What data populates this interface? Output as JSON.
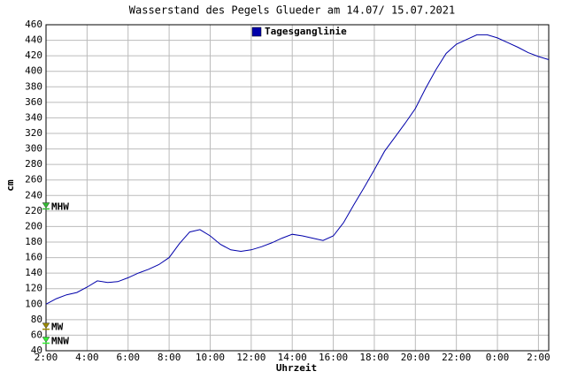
{
  "chart_data": {
    "type": "line",
    "title": "Wasserstand des Pegels Glueder am 14.07/ 15.07.2021",
    "x_label": "Uhrzeit",
    "y_label": "cm",
    "x": [
      2,
      2.5,
      3,
      3.5,
      4,
      4.5,
      5,
      5.5,
      6,
      6.5,
      7,
      7.5,
      8,
      8.5,
      9,
      9.5,
      10,
      10.5,
      11,
      11.5,
      12,
      12.5,
      13,
      13.5,
      14,
      14.5,
      15,
      15.5,
      16,
      16.5,
      17,
      17.5,
      18,
      18.5,
      19,
      19.5,
      20,
      20.5,
      21,
      21.5,
      22,
      22.5,
      23,
      23.5,
      24,
      24.5,
      25,
      25.5,
      26,
      26.5
    ],
    "series": [
      {
        "name": "Tagesganglinie",
        "color": "#0000aa",
        "values": [
          100,
          107,
          112,
          115,
          122,
          130,
          128,
          129,
          134,
          140,
          145,
          151,
          160,
          178,
          193,
          196,
          188,
          177,
          170,
          168,
          170,
          174,
          179,
          185,
          190,
          188,
          185,
          182,
          188,
          205,
          228,
          250,
          273,
          297,
          315,
          333,
          352,
          378,
          402,
          423,
          435,
          441,
          447,
          447,
          443,
          437,
          431,
          424,
          419,
          415
        ]
      }
    ],
    "xlim": [
      2,
      26.5
    ],
    "xticks": [
      {
        "value": 2,
        "label": "2:00"
      },
      {
        "value": 4,
        "label": "4:00"
      },
      {
        "value": 6,
        "label": "6:00"
      },
      {
        "value": 8,
        "label": "8:00"
      },
      {
        "value": 10,
        "label": "10:00"
      },
      {
        "value": 12,
        "label": "12:00"
      },
      {
        "value": 14,
        "label": "14:00"
      },
      {
        "value": 16,
        "label": "16:00"
      },
      {
        "value": 18,
        "label": "18:00"
      },
      {
        "value": 20,
        "label": "20:00"
      },
      {
        "value": 22,
        "label": "22:00"
      },
      {
        "value": 24,
        "label": "0:00"
      },
      {
        "value": 26,
        "label": "2:00"
      }
    ],
    "ylim": [
      40,
      460
    ],
    "yticks": [
      40,
      60,
      80,
      100,
      120,
      140,
      160,
      180,
      200,
      220,
      240,
      260,
      280,
      300,
      320,
      340,
      360,
      380,
      400,
      420,
      440,
      460
    ],
    "grid": true,
    "markers": [
      {
        "label": "MHW",
        "value": 225,
        "color": "#33bb33"
      },
      {
        "label": "MW",
        "value": 70,
        "color": "#998800"
      },
      {
        "label": "MNW",
        "value": 52,
        "color": "#33ee33"
      }
    ]
  }
}
